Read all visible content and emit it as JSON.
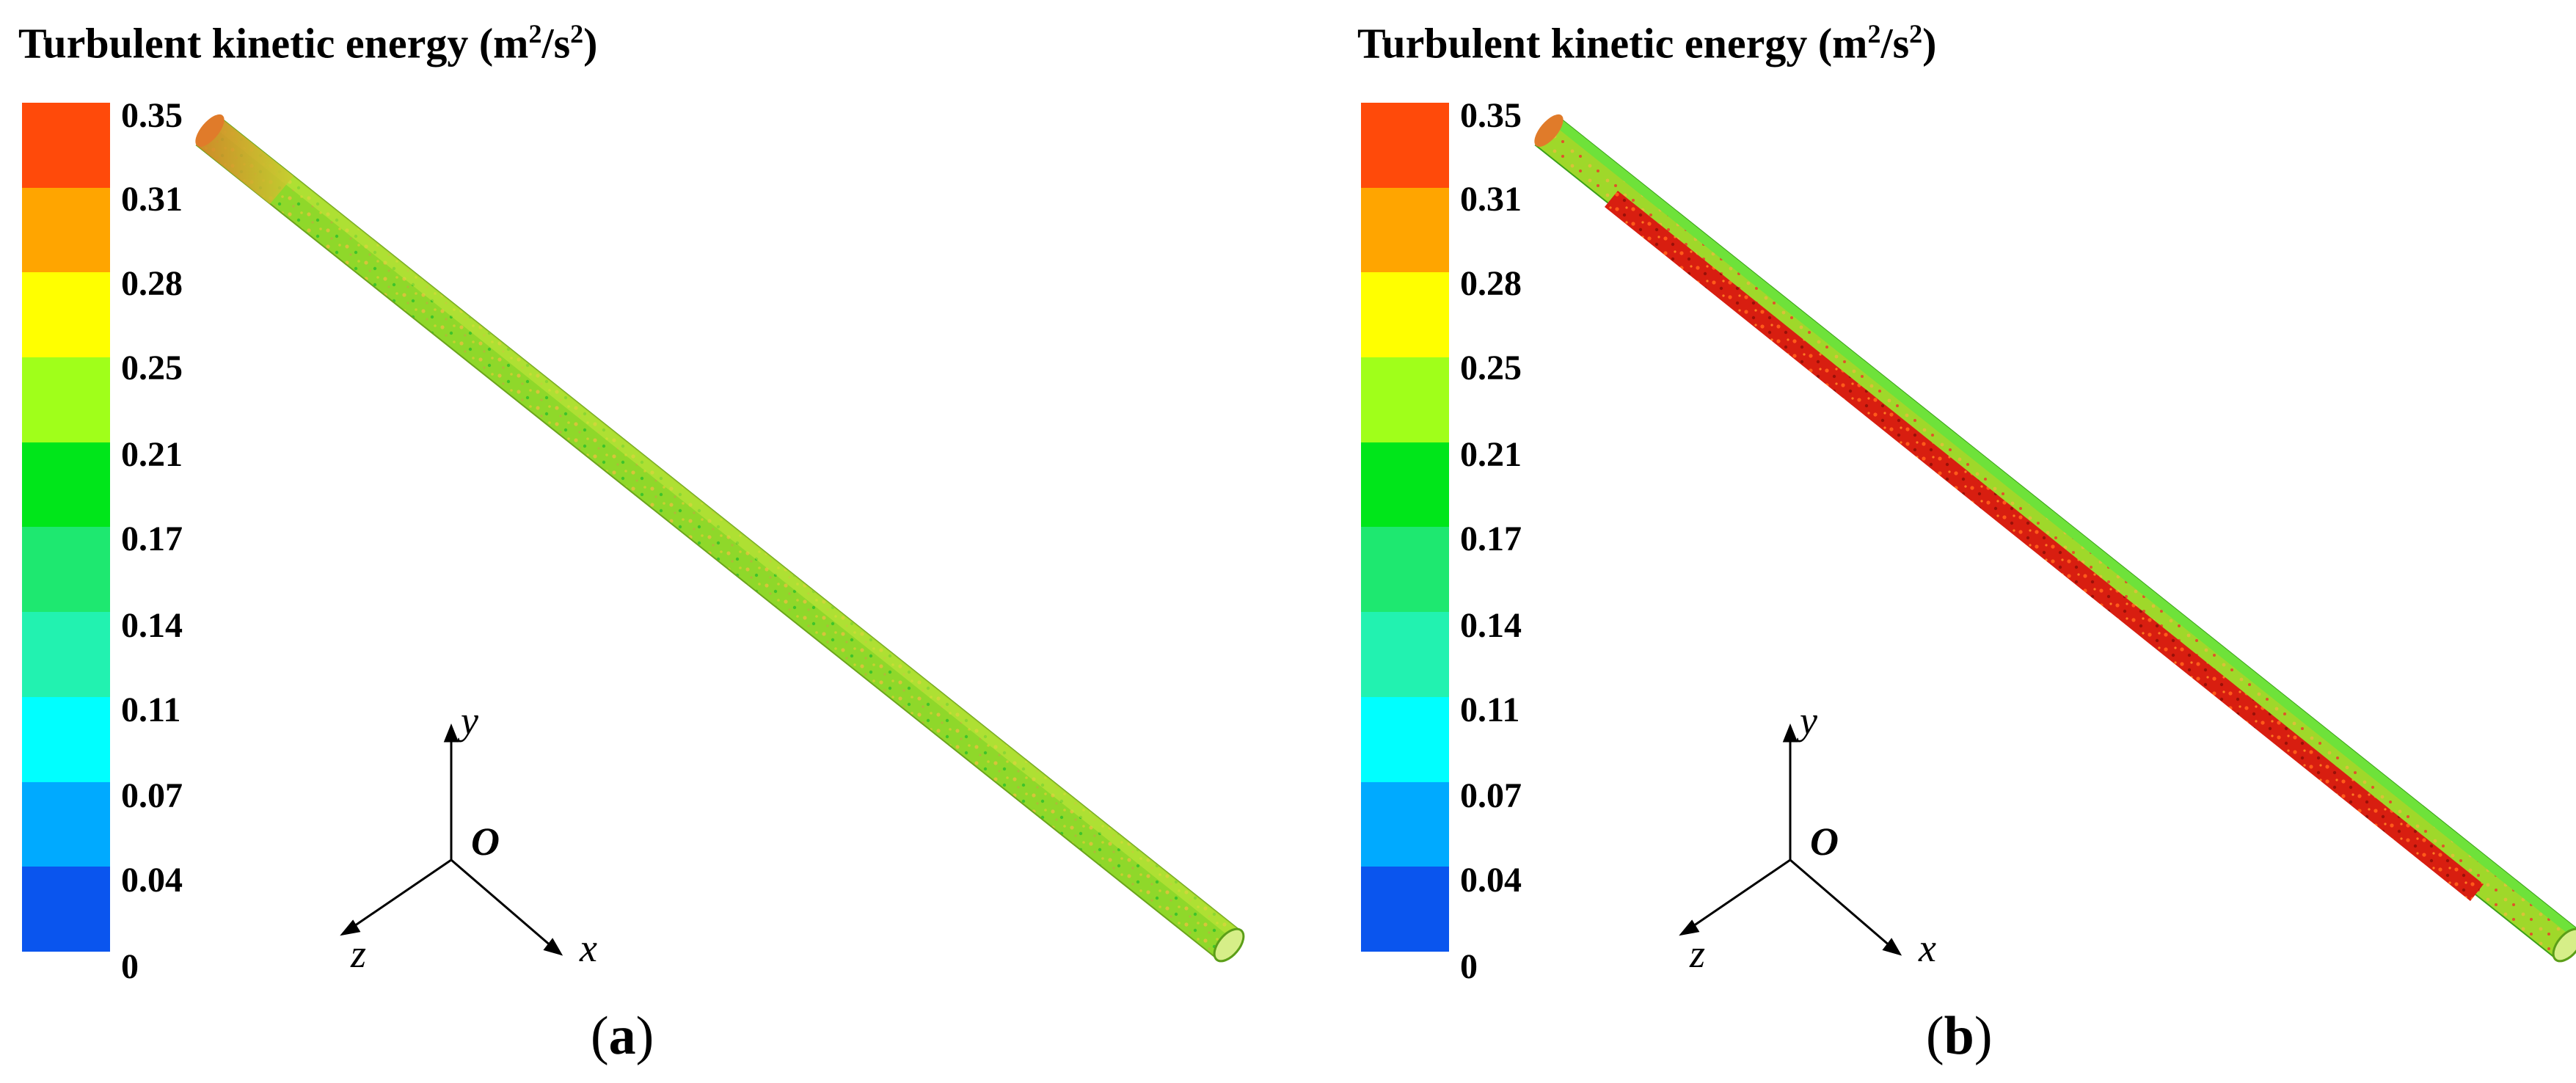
{
  "figure": {
    "colorbar": {
      "title_main": "Turbulent kinetic energy (m",
      "title_sup1": "2",
      "title_mid": "/s",
      "title_sup2": "2",
      "title_end": ")",
      "ticks": [
        "0.35",
        "0.31",
        "0.28",
        "0.25",
        "0.21",
        "0.17",
        "0.14",
        "0.11",
        "0.07",
        "0.04",
        "0"
      ],
      "colors": [
        "#ff4a0a",
        "#ffa500",
        "#ffff00",
        "#a0ff1a",
        "#00e61a",
        "#1ee870",
        "#22f2b0",
        "#00ffff",
        "#00aaff",
        "#0a55ee"
      ]
    },
    "axes": {
      "y": "y",
      "x": "x",
      "z": "z",
      "origin": "O"
    },
    "panels": [
      {
        "label_open": "(",
        "label": "a",
        "label_close": ")"
      },
      {
        "label_open": "(",
        "label": "b",
        "label_close": ")"
      }
    ]
  }
}
